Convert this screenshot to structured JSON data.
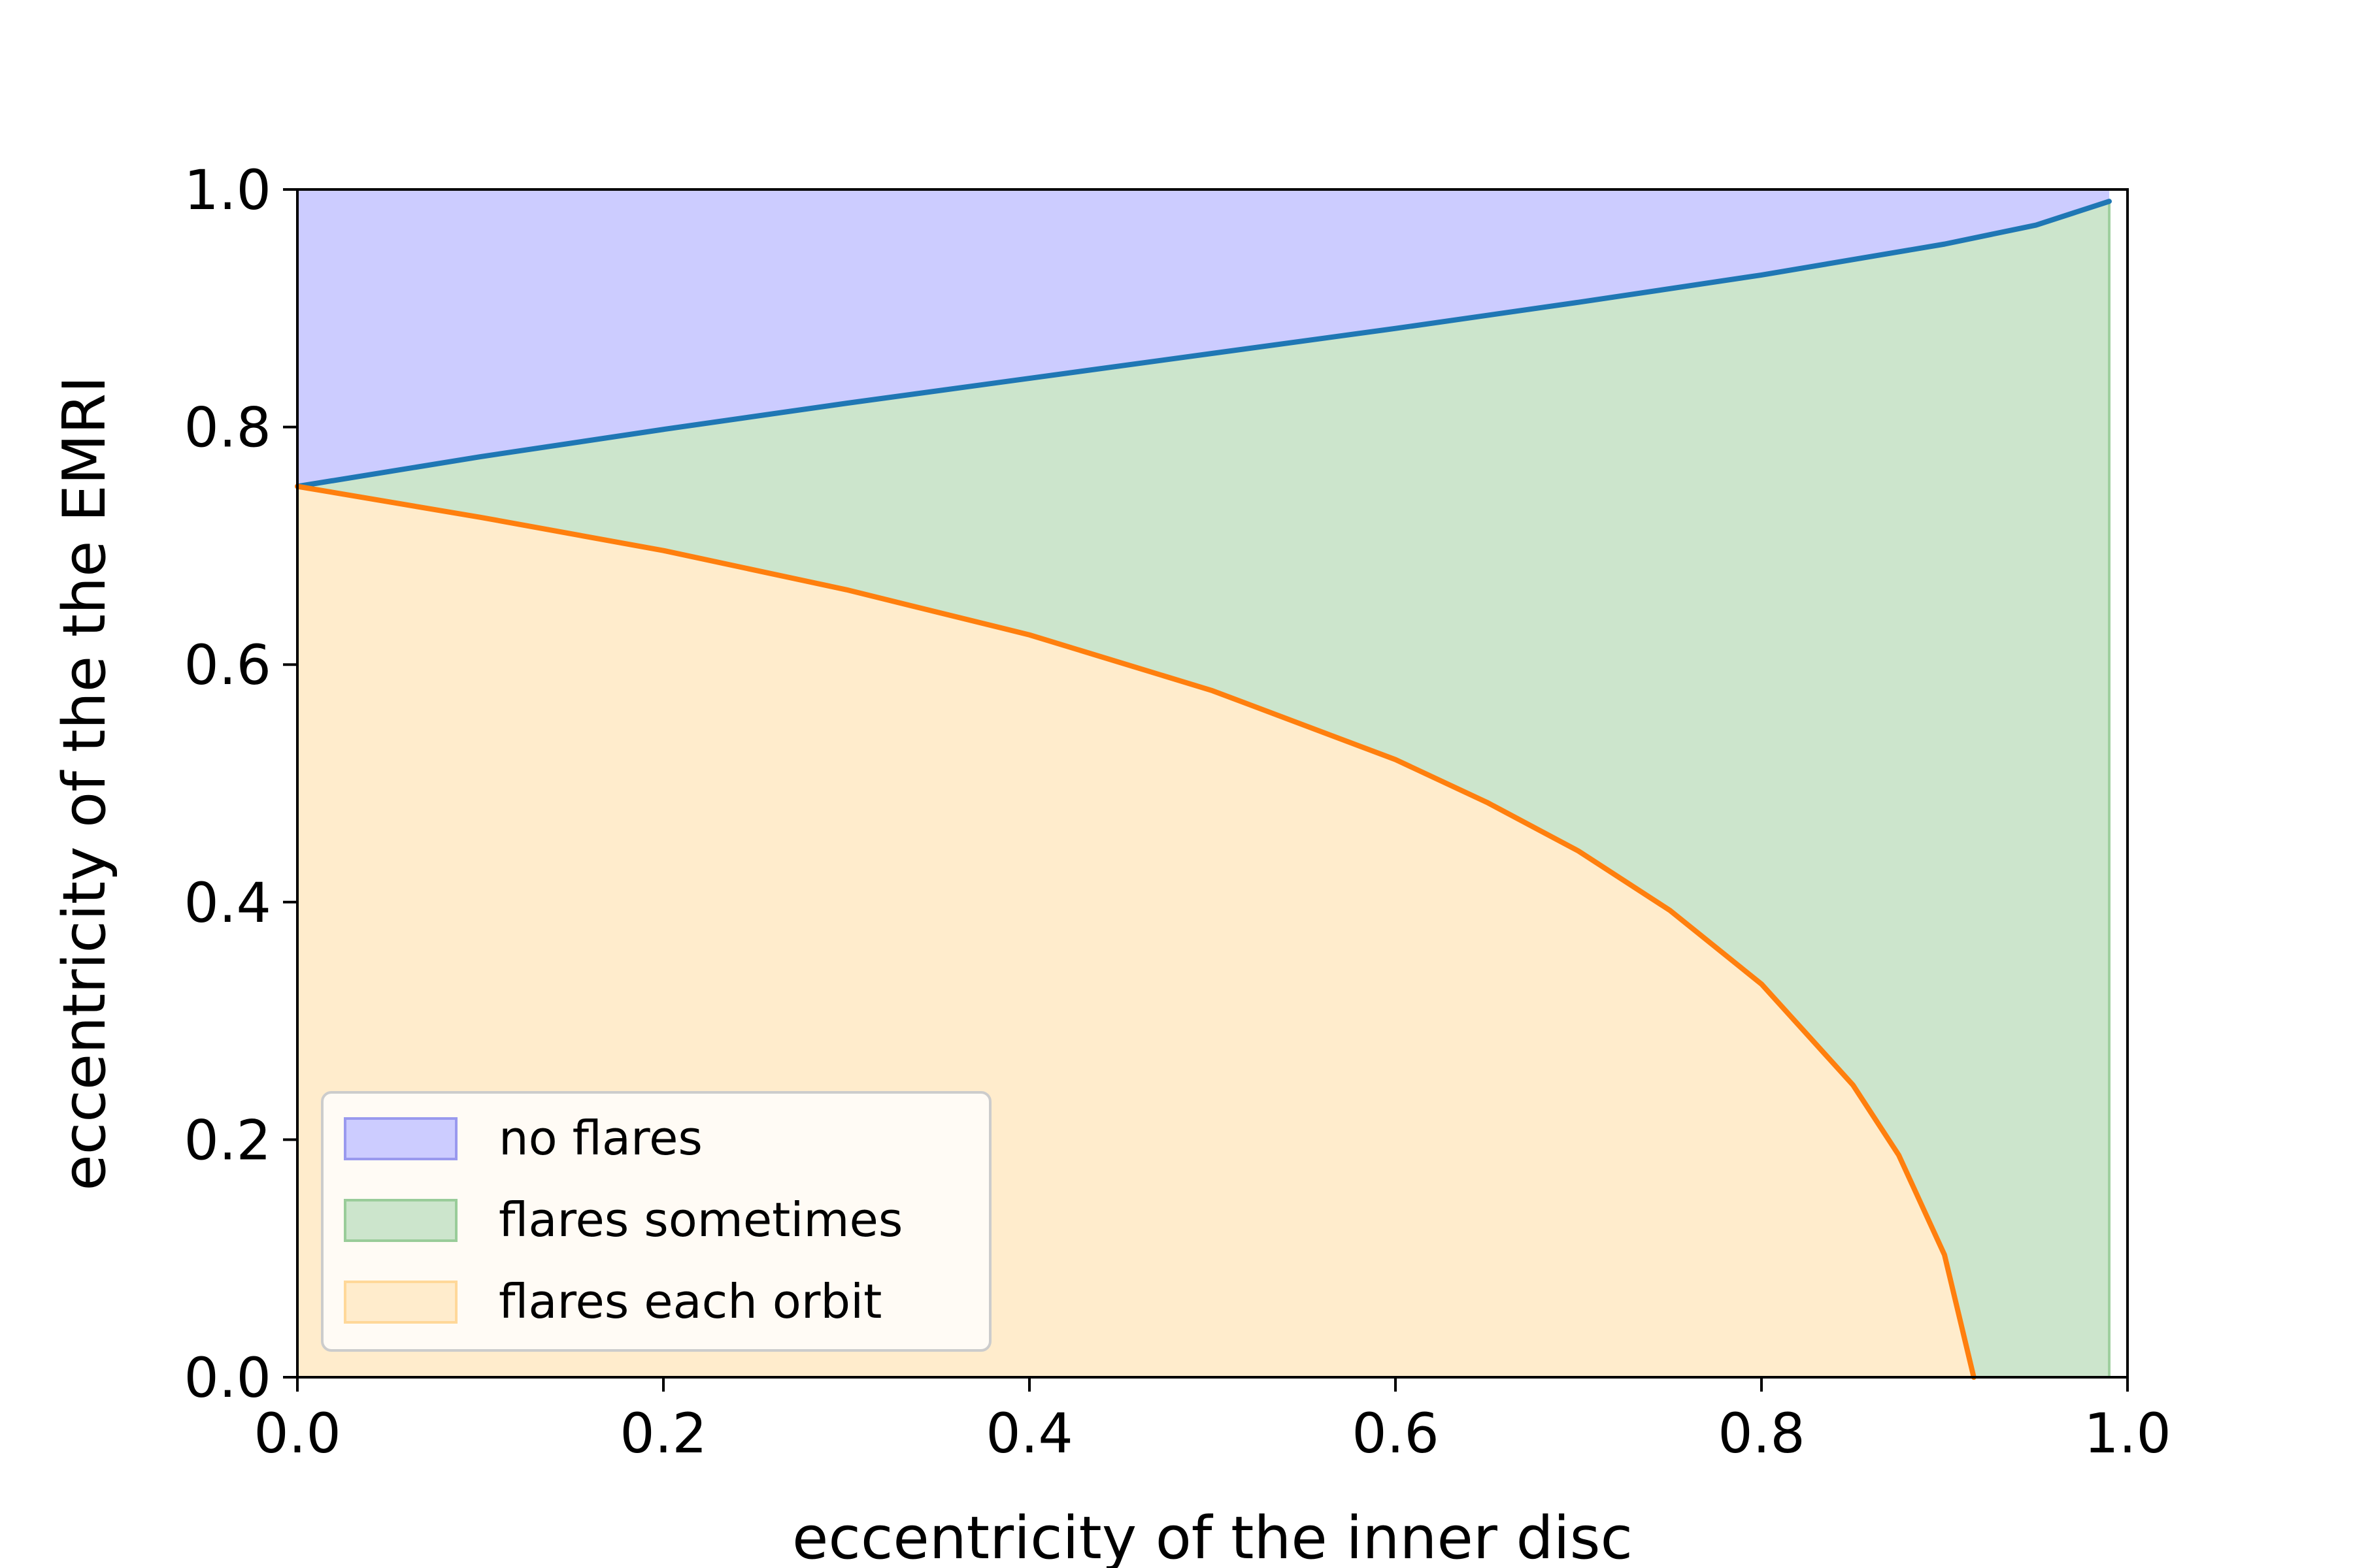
{
  "chart_data": {
    "type": "area",
    "xlabel": "eccentricity of the inner disc",
    "ylabel": "eccentricity of the the EMRI",
    "xlim": [
      0.0,
      1.0
    ],
    "ylim": [
      0.0,
      1.0
    ],
    "xticks": [
      "0.0",
      "0.2",
      "0.4",
      "0.6",
      "0.8",
      "1.0"
    ],
    "yticks": [
      "0.0",
      "0.2",
      "0.4",
      "0.6",
      "0.8",
      "1.0"
    ],
    "grid": false,
    "legend_position": "lower-left",
    "series": [
      {
        "kind": "line",
        "color": "#1f77b4",
        "x": [
          0.0,
          0.1,
          0.2,
          0.3,
          0.4,
          0.5,
          0.6,
          0.7,
          0.8,
          0.9,
          0.95,
          0.99
        ],
        "y": [
          0.75,
          0.775,
          0.798,
          0.82,
          0.841,
          0.862,
          0.883,
          0.905,
          0.928,
          0.954,
          0.97,
          0.99
        ]
      },
      {
        "kind": "line",
        "color": "#ff7f0e",
        "x": [
          0.0,
          0.1,
          0.2,
          0.3,
          0.4,
          0.5,
          0.6,
          0.65,
          0.7,
          0.75,
          0.8,
          0.85,
          0.875,
          0.9,
          0.916
        ],
        "y": [
          0.75,
          0.724,
          0.696,
          0.663,
          0.625,
          0.578,
          0.52,
          0.484,
          0.443,
          0.393,
          0.331,
          0.246,
          0.187,
          0.103,
          0.0
        ]
      }
    ],
    "fills": [
      {
        "name": "no flares",
        "color": "#ccccff"
      },
      {
        "name": "flares sometimes",
        "color": "#cce5cc",
        "x_end": 0.99
      },
      {
        "name": "flares each orbit",
        "color": "#ffeccc"
      }
    ]
  }
}
